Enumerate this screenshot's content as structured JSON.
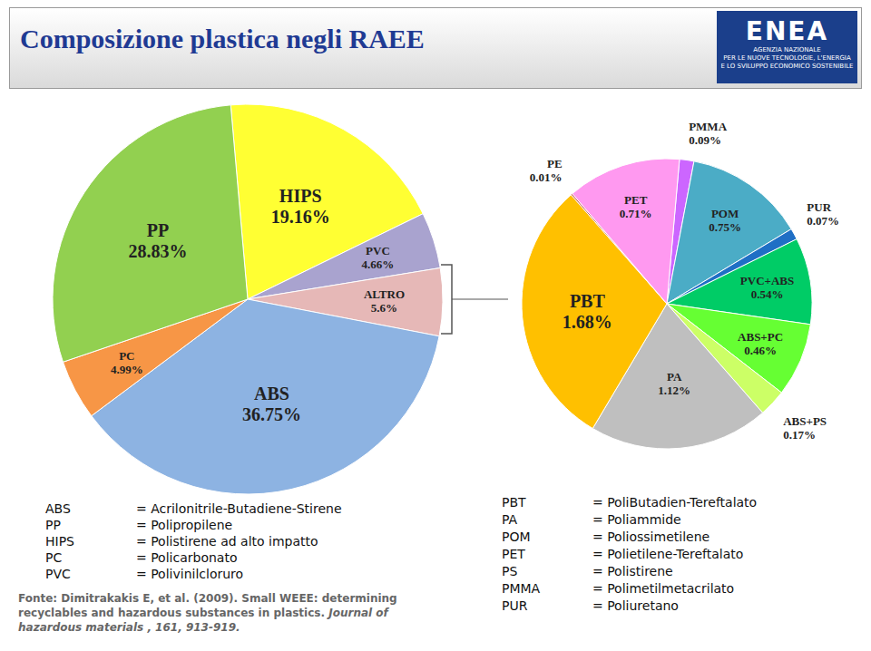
{
  "title": "Composizione plastica negli RAEE",
  "logo": {
    "name": "ENEA",
    "lines": [
      "AGENZIA NAZIONALE",
      "PER LE NUOVE TECNOLOGIE, L'ENERGIA",
      "E LO SVILUPPO ECONOMICO SOSTENIBILE"
    ]
  },
  "chart_data": [
    {
      "type": "pie",
      "categories": [
        "HIPS",
        "PVC",
        "ALTRO",
        "ABS",
        "PC",
        "PP"
      ],
      "values": [
        19.16,
        4.66,
        5.6,
        36.75,
        4.99,
        28.83
      ],
      "value_labels": [
        "19.16%",
        "4.66%",
        "5.6%",
        "36.75%",
        "4.99%",
        "28.83%"
      ],
      "colors": [
        "#ffff33",
        "#a9a3cf",
        "#e6b8b7",
        "#8db3e2",
        "#f79646",
        "#92d050"
      ],
      "data_labels": true,
      "legend": false
    },
    {
      "type": "pie",
      "categories": [
        "PMMA",
        "POM",
        "PUR",
        "PVC+ABS",
        "ABS+PC",
        "ABS+PS",
        "PA",
        "PBT",
        "PE",
        "PET"
      ],
      "values": [
        0.09,
        0.75,
        0.07,
        0.54,
        0.46,
        0.17,
        1.12,
        1.68,
        0.01,
        0.71
      ],
      "value_labels": [
        "0.09%",
        "0.75%",
        "0.07%",
        "0.54%",
        "0.46%",
        "0.17%",
        "1.12%",
        "1.68%",
        "0.01%",
        "0.71%"
      ],
      "colors": [
        "#cc66ff",
        "#4bacc6",
        "#1f6fc5",
        "#00cc66",
        "#66ff33",
        "#ccff66",
        "#bfbfbf",
        "#ffc000",
        "#c0504d",
        "#ff99f0"
      ],
      "data_labels": true,
      "legend": false
    }
  ],
  "glossary": {
    "left": [
      [
        "ABS",
        "= Acrilonitrile-Butadiene-Stirene"
      ],
      [
        "PP",
        "= Polipropilene"
      ],
      [
        "HIPS",
        "= Polistirene ad alto impatto"
      ],
      [
        "PC",
        "= Policarbonato"
      ],
      [
        "PVC",
        "= Polivinilcloruro"
      ]
    ],
    "right": [
      [
        "PBT",
        "= PoliButadien-Tereftalato"
      ],
      [
        "PA",
        "= Poliammide"
      ],
      [
        "POM",
        "= Poliossimetilene"
      ],
      [
        "PET",
        "= Polietilene-Tereftalato"
      ],
      [
        "PS",
        "= Polistirene"
      ],
      [
        "PMMA",
        "= Polimetilmetacrilato"
      ],
      [
        "PUR",
        "= Poliuretano"
      ]
    ]
  },
  "source": {
    "text": "Fonte: Dimitrakakis E, et al. (2009). Small WEEE: determining recyclables and hazardous substances in plastics. ",
    "journal": "Journal of hazardous materials , 161, 913-919."
  }
}
